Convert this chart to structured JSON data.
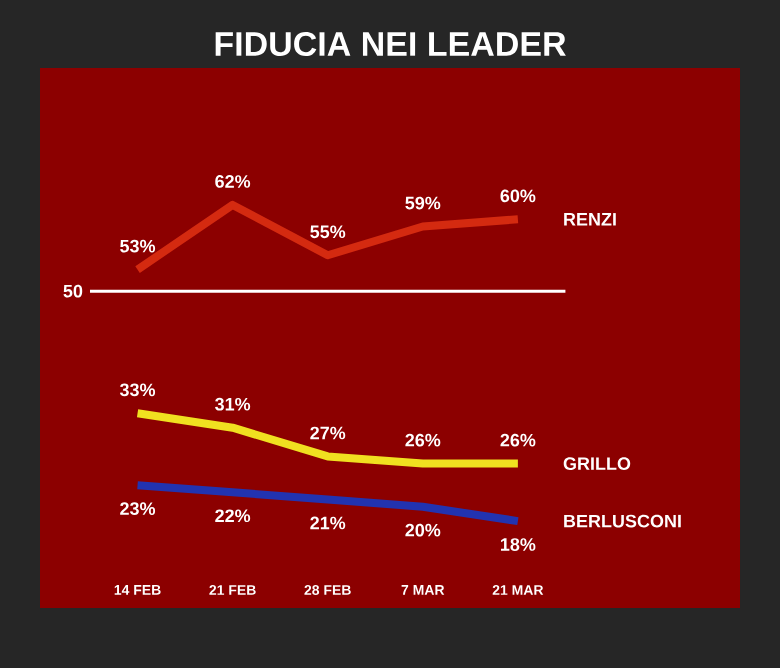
{
  "chart_data": {
    "type": "line",
    "title": "FIDUCIA NEI LEADER",
    "categories": [
      "14 FEB",
      "21 FEB",
      "28 FEB",
      "7 MAR",
      "21 MAR"
    ],
    "series": [
      {
        "name": "RENZI",
        "color": "#d42a10",
        "values": [
          53,
          62,
          55,
          59,
          60
        ],
        "value_labels": [
          "53%",
          "62%",
          "55%",
          "59%",
          "60%"
        ]
      },
      {
        "name": "GRILLO",
        "color": "#f0e020",
        "values": [
          33,
          31,
          27,
          26,
          26
        ],
        "value_labels": [
          "33%",
          "31%",
          "27%",
          "26%",
          "26%"
        ]
      },
      {
        "name": "BERLUSCONI",
        "color": "#2233b0",
        "values": [
          23,
          22,
          21,
          20,
          18
        ],
        "value_labels": [
          "23%",
          "22%",
          "21%",
          "20%",
          "18%"
        ]
      }
    ],
    "ref_lines": [
      {
        "axis": "y",
        "value": 50,
        "label": "50",
        "color": "#ffffff"
      }
    ],
    "marker": "none",
    "line_style": "solid"
  }
}
